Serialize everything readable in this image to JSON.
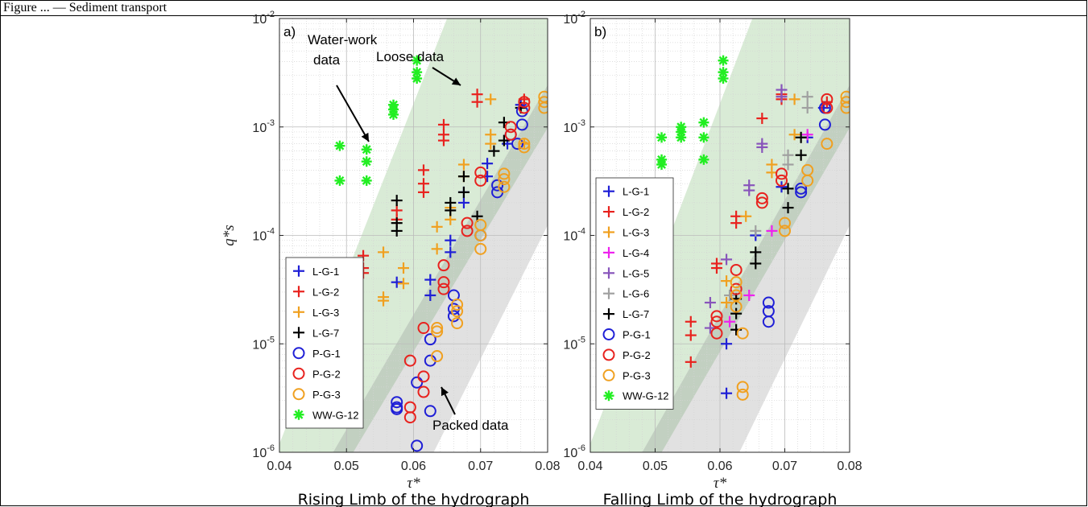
{
  "header": {
    "text": "Figure ... — Sediment transport"
  },
  "chart_data": [
    {
      "type": "scatter",
      "panel_label": "a)",
      "caption": "Rising Limb of the hydrograph",
      "xlabel": "τ*",
      "ylabel": "q*s",
      "xlim": [
        0.04,
        0.08
      ],
      "ylim_log10": [
        -6,
        -2
      ],
      "y_scale": "log",
      "grid": true,
      "legend_position": "bottom-left",
      "annotations": [
        "Loose data",
        "Water-work data",
        "Packed data"
      ],
      "series": [
        {
          "name": "L-G-1",
          "marker": "plus",
          "color": "#1f1fd6",
          "points": [
            [
              0.0575,
              3.7e-05
            ],
            [
              0.0625,
              3.9e-05
            ],
            [
              0.0625,
              2.8e-05
            ],
            [
              0.0655,
              9e-05
            ],
            [
              0.0655,
              7e-05
            ],
            [
              0.0675,
              0.00025
            ],
            [
              0.0675,
              0.0002
            ],
            [
              0.071,
              0.00046
            ],
            [
              0.071,
              0.00035
            ],
            [
              0.076,
              0.0016
            ],
            [
              0.074,
              0.0007
            ]
          ]
        },
        {
          "name": "L-G-2",
          "marker": "plus",
          "color": "#e8221e",
          "points": [
            [
              0.0525,
              6.5e-05
            ],
            [
              0.0525,
              5e-05
            ],
            [
              0.0525,
              4.5e-05
            ],
            [
              0.0575,
              0.00017
            ],
            [
              0.0575,
              0.00014
            ],
            [
              0.0615,
              0.0004
            ],
            [
              0.0615,
              0.0003
            ],
            [
              0.0615,
              0.00025
            ],
            [
              0.0645,
              0.00105
            ],
            [
              0.0645,
              0.00085
            ],
            [
              0.0645,
              0.00075
            ],
            [
              0.0695,
              0.002
            ],
            [
              0.0695,
              0.0017
            ],
            [
              0.0765,
              0.0018
            ]
          ]
        },
        {
          "name": "L-G-3",
          "marker": "plus",
          "color": "#f0a020",
          "points": [
            [
              0.0555,
              2.7e-05
            ],
            [
              0.0555,
              2.5e-05
            ],
            [
              0.0555,
              7e-05
            ],
            [
              0.0585,
              5e-05
            ],
            [
              0.0585,
              3.6e-05
            ],
            [
              0.0635,
              0.00012
            ],
            [
              0.0635,
              7.5e-05
            ],
            [
              0.0655,
              0.00018
            ],
            [
              0.0655,
              0.00014
            ],
            [
              0.0675,
              0.00045
            ],
            [
              0.0675,
              0.00035
            ],
            [
              0.0715,
              0.0018
            ],
            [
              0.0715,
              0.00085
            ],
            [
              0.0715,
              0.0007
            ],
            [
              0.0765,
              0.0007
            ]
          ]
        },
        {
          "name": "L-G-7",
          "marker": "plus",
          "color": "#000000",
          "points": [
            [
              0.0575,
              0.00021
            ],
            [
              0.0575,
              0.00013
            ],
            [
              0.0575,
              0.00011
            ],
            [
              0.0655,
              0.0002
            ],
            [
              0.0655,
              0.00017
            ],
            [
              0.0675,
              0.00035
            ],
            [
              0.0675,
              0.00025
            ],
            [
              0.0695,
              0.00015
            ],
            [
              0.072,
              0.0006
            ],
            [
              0.0735,
              0.0011
            ],
            [
              0.0735,
              0.00075
            ],
            [
              0.076,
              0.0015
            ]
          ]
        },
        {
          "name": "P-G-1",
          "marker": "circle",
          "color": "#1f1fd6",
          "points": [
            [
              0.0575,
              2.9e-06
            ],
            [
              0.0575,
              2.6e-06
            ],
            [
              0.0575,
              2.5e-06
            ],
            [
              0.0605,
              1.15e-06
            ],
            [
              0.0605,
              4.4e-06
            ],
            [
              0.0625,
              2.4e-06
            ],
            [
              0.0625,
              7e-06
            ],
            [
              0.0625,
              1.1e-05
            ],
            [
              0.066,
              2.8e-05
            ],
            [
              0.066,
              2.1e-05
            ],
            [
              0.066,
              1.8e-05
            ],
            [
              0.07,
              0.0001
            ],
            [
              0.0725,
              0.00025
            ],
            [
              0.0725,
              0.00029
            ],
            [
              0.0745,
              0.00085
            ],
            [
              0.0755,
              0.0007
            ],
            [
              0.0762,
              0.00105
            ],
            [
              0.0762,
              0.0014
            ]
          ]
        },
        {
          "name": "P-G-2",
          "marker": "circle",
          "color": "#e8221e",
          "points": [
            [
              0.0595,
              2.6e-06
            ],
            [
              0.0595,
              2.1e-06
            ],
            [
              0.0595,
              7e-06
            ],
            [
              0.0615,
              1.4e-05
            ],
            [
              0.0615,
              5e-06
            ],
            [
              0.0615,
              3.6e-06
            ],
            [
              0.0645,
              5.3e-05
            ],
            [
              0.0645,
              3.7e-05
            ],
            [
              0.0645,
              3.2e-05
            ],
            [
              0.068,
              0.00013
            ],
            [
              0.068,
              0.00011
            ],
            [
              0.07,
              0.00038
            ],
            [
              0.07,
              0.00032
            ],
            [
              0.0745,
              0.001
            ],
            [
              0.0745,
              0.00085
            ],
            [
              0.0765,
              0.0017
            ],
            [
              0.0765,
              0.0015
            ]
          ]
        },
        {
          "name": "P-G-3",
          "marker": "circle",
          "color": "#f0a020",
          "points": [
            [
              0.0635,
              1.4e-05
            ],
            [
              0.0635,
              1.3e-05
            ],
            [
              0.0635,
              7.7e-06
            ],
            [
              0.0665,
              2.3e-05
            ],
            [
              0.0665,
              2e-05
            ],
            [
              0.0665,
              1.55e-05
            ],
            [
              0.07,
              0.000125
            ],
            [
              0.07,
              0.0001
            ],
            [
              0.07,
              7.5e-05
            ],
            [
              0.0735,
              0.00037
            ],
            [
              0.0735,
              0.00033
            ],
            [
              0.0735,
              0.00028
            ],
            [
              0.0765,
              0.0007
            ],
            [
              0.0765,
              0.00065
            ],
            [
              0.0795,
              0.0019
            ],
            [
              0.0795,
              0.0017
            ],
            [
              0.0795,
              0.0015
            ]
          ]
        },
        {
          "name": "WW-G-12",
          "marker": "asterisk",
          "color": "#22ee22",
          "points": [
            [
              0.049,
              0.00067
            ],
            [
              0.049,
              0.00032
            ],
            [
              0.053,
              0.00062
            ],
            [
              0.053,
              0.00048
            ],
            [
              0.053,
              0.00032
            ],
            [
              0.057,
              0.0016
            ],
            [
              0.057,
              0.00145
            ],
            [
              0.057,
              0.0013
            ],
            [
              0.0605,
              0.0041
            ],
            [
              0.0605,
              0.0032
            ],
            [
              0.0605,
              0.0028
            ]
          ]
        }
      ]
    },
    {
      "type": "scatter",
      "panel_label": "b)",
      "caption": "Falling Limb of the hydrograph",
      "xlabel": "τ*",
      "ylabel": "",
      "xlim": [
        0.04,
        0.08
      ],
      "ylim_log10": [
        -6,
        -2
      ],
      "y_scale": "log",
      "grid": true,
      "legend_position": "bottom-left",
      "annotations": [],
      "series": [
        {
          "name": "L-G-1",
          "marker": "plus",
          "color": "#1f1fd6",
          "points": [
            [
              0.061,
              3.5e-06
            ],
            [
              0.061,
              1e-05
            ],
            [
              0.0655,
              0.0001
            ],
            [
              0.0695,
              0.00028
            ],
            [
              0.0735,
              0.0008
            ],
            [
              0.076,
              0.0015
            ]
          ]
        },
        {
          "name": "L-G-2",
          "marker": "plus",
          "color": "#e8221e",
          "points": [
            [
              0.0555,
              6.8e-06
            ],
            [
              0.0555,
              1.2e-05
            ],
            [
              0.0555,
              1.6e-05
            ],
            [
              0.0595,
              5e-05
            ],
            [
              0.0595,
              5.5e-05
            ],
            [
              0.0625,
              0.00015
            ],
            [
              0.0625,
              0.00013
            ],
            [
              0.0665,
              0.0012
            ],
            [
              0.0695,
              0.002
            ],
            [
              0.0695,
              0.0018
            ],
            [
              0.0765,
              0.0017
            ]
          ]
        },
        {
          "name": "L-G-3",
          "marker": "plus",
          "color": "#f0a020",
          "points": [
            [
              0.061,
              2.4e-05
            ],
            [
              0.061,
              3.8e-05
            ],
            [
              0.064,
              0.00015
            ],
            [
              0.068,
              0.00045
            ],
            [
              0.068,
              0.00038
            ],
            [
              0.0715,
              0.0018
            ],
            [
              0.0715,
              0.00085
            ]
          ]
        },
        {
          "name": "L-G-4",
          "marker": "plus",
          "color": "#ee22ee",
          "points": [
            [
              0.0615,
              1.6e-05
            ],
            [
              0.0645,
              2.8e-05
            ],
            [
              0.068,
              0.00011
            ],
            [
              0.0735,
              0.00085
            ]
          ]
        },
        {
          "name": "L-G-5",
          "marker": "plus",
          "color": "#8855bb",
          "points": [
            [
              0.0585,
              2.4e-05
            ],
            [
              0.0585,
              1.4e-05
            ],
            [
              0.061,
              6e-05
            ],
            [
              0.0645,
              0.00029
            ],
            [
              0.0645,
              0.00026
            ],
            [
              0.0665,
              0.0007
            ],
            [
              0.0665,
              0.00065
            ],
            [
              0.0695,
              0.0022
            ],
            [
              0.0695,
              0.0019
            ]
          ]
        },
        {
          "name": "L-G-6",
          "marker": "plus",
          "color": "#a0a0a0",
          "points": [
            [
              0.0615,
              2.8e-05
            ],
            [
              0.0655,
              0.00011
            ],
            [
              0.0705,
              0.00055
            ],
            [
              0.0705,
              0.00045
            ],
            [
              0.0735,
              0.0019
            ],
            [
              0.0735,
              0.0015
            ]
          ]
        },
        {
          "name": "L-G-7",
          "marker": "plus",
          "color": "#000000",
          "points": [
            [
              0.0625,
              1.35e-05
            ],
            [
              0.0625,
              1.9e-05
            ],
            [
              0.0625,
              2.6e-05
            ],
            [
              0.0655,
              7e-05
            ],
            [
              0.0655,
              5.5e-05
            ],
            [
              0.0705,
              0.00027
            ],
            [
              0.0705,
              0.00018
            ],
            [
              0.0725,
              0.0008
            ],
            [
              0.0725,
              0.00055
            ]
          ]
        },
        {
          "name": "P-G-1",
          "marker": "circle",
          "color": "#1f1fd6",
          "points": [
            [
              0.0675,
              2.4e-05
            ],
            [
              0.0675,
              2e-05
            ],
            [
              0.0675,
              1.6e-05
            ],
            [
              0.0725,
              0.00027
            ],
            [
              0.0725,
              0.00025
            ],
            [
              0.0762,
              0.00105
            ],
            [
              0.0762,
              0.0015
            ]
          ]
        },
        {
          "name": "P-G-2",
          "marker": "circle",
          "color": "#e8221e",
          "points": [
            [
              0.0595,
              1.8e-05
            ],
            [
              0.0595,
              1.6e-05
            ],
            [
              0.0595,
              1.25e-05
            ],
            [
              0.0625,
              4.8e-05
            ],
            [
              0.0625,
              3.2e-05
            ],
            [
              0.0665,
              0.00022
            ],
            [
              0.0665,
              0.0002
            ],
            [
              0.0695,
              0.00037
            ],
            [
              0.0695,
              0.00032
            ],
            [
              0.0765,
              0.0018
            ],
            [
              0.0765,
              0.0015
            ]
          ]
        },
        {
          "name": "P-G-3",
          "marker": "circle",
          "color": "#f0a020",
          "points": [
            [
              0.0625,
              3.7e-05
            ],
            [
              0.0625,
              2.8e-05
            ],
            [
              0.0625,
              2.2e-05
            ],
            [
              0.0635,
              1.25e-05
            ],
            [
              0.0635,
              4e-06
            ],
            [
              0.0635,
              3.4e-06
            ],
            [
              0.07,
              0.00013
            ],
            [
              0.07,
              0.00011
            ],
            [
              0.0735,
              0.0004
            ],
            [
              0.0735,
              0.00032
            ],
            [
              0.0765,
              0.0007
            ],
            [
              0.0795,
              0.0019
            ],
            [
              0.0795,
              0.0017
            ],
            [
              0.0795,
              0.0015
            ]
          ]
        },
        {
          "name": "WW-G-12",
          "marker": "asterisk",
          "color": "#22ee22",
          "points": [
            [
              0.049,
              0.00028
            ],
            [
              0.049,
              0.00025
            ],
            [
              0.051,
              0.0008
            ],
            [
              0.051,
              0.0005
            ],
            [
              0.051,
              0.00045
            ],
            [
              0.054,
              0.001
            ],
            [
              0.054,
              0.0009
            ],
            [
              0.054,
              0.0008
            ],
            [
              0.0575,
              0.0011
            ],
            [
              0.0575,
              0.0008
            ],
            [
              0.0575,
              0.0005
            ],
            [
              0.0605,
              0.0041
            ],
            [
              0.0605,
              0.0032
            ],
            [
              0.0605,
              0.0028
            ]
          ]
        }
      ]
    }
  ]
}
